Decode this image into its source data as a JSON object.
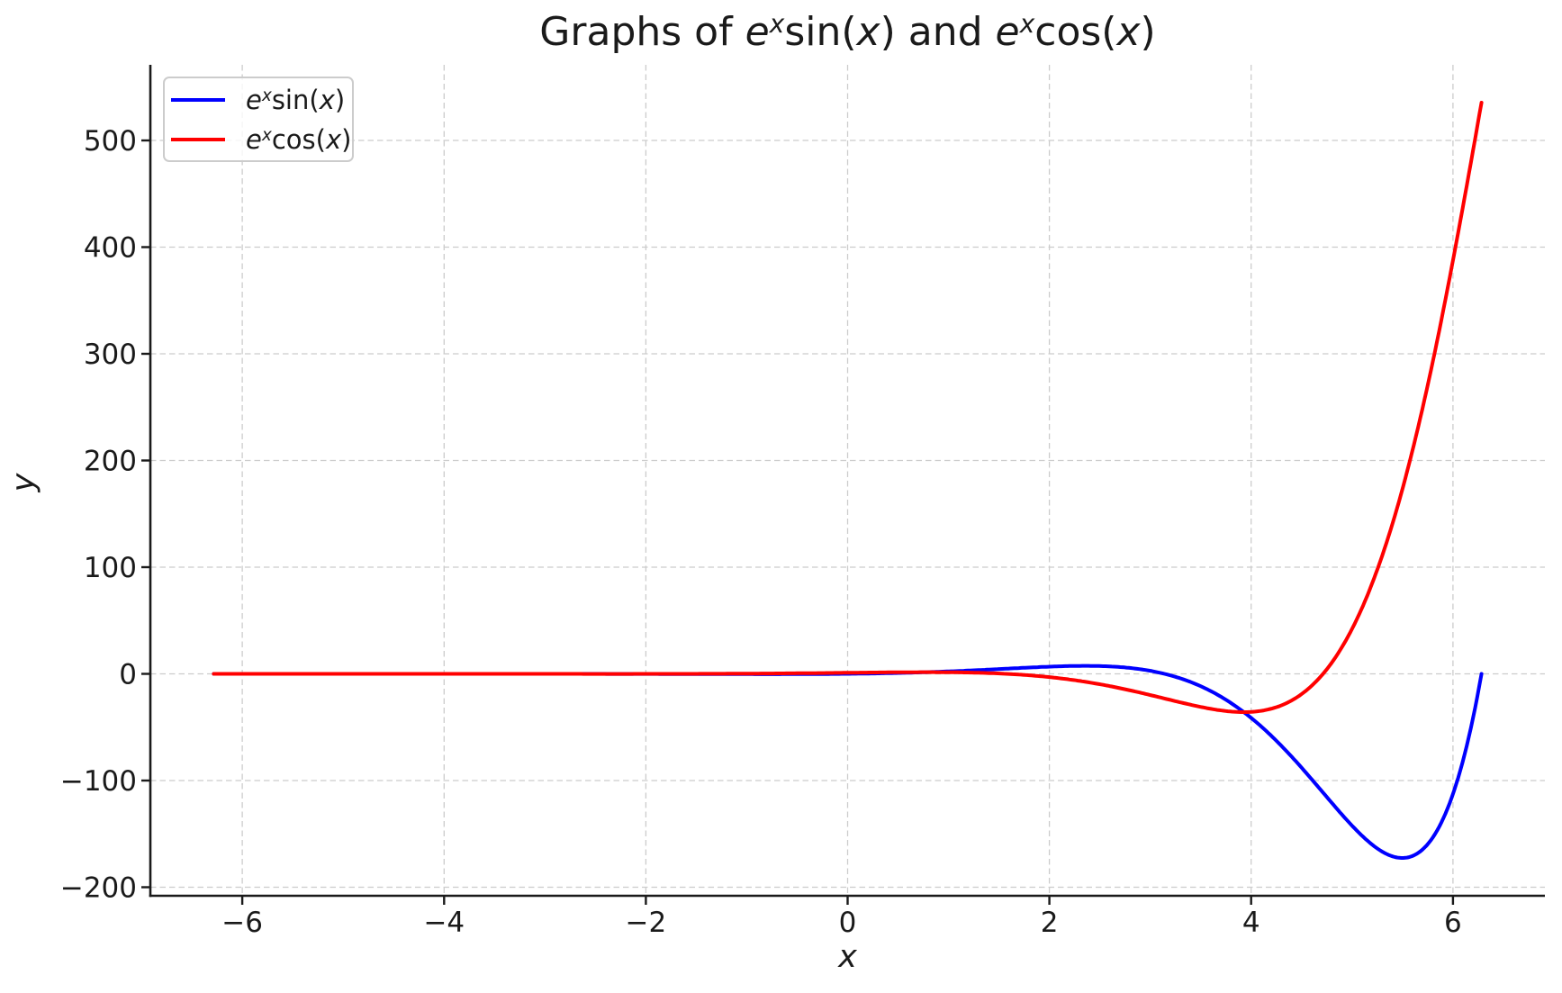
{
  "figure": {
    "background": "#ffffff",
    "text_color": "#1a1a1a",
    "grid_color": "#cccccc",
    "legend_border_color": "#cccccc"
  },
  "chart_data": {
    "type": "line",
    "title": "Graphs of e^x sin(x) and e^x cos(x)",
    "title_parts": [
      {
        "t": "Graphs of ",
        "s": "r"
      },
      {
        "t": "e",
        "s": "i"
      },
      {
        "t": "x",
        "s": "sup"
      },
      {
        "t": "sin(",
        "s": "r"
      },
      {
        "t": "x",
        "s": "i"
      },
      {
        "t": ")",
        "s": "r"
      },
      {
        "t": " and ",
        "s": "r"
      },
      {
        "t": "e",
        "s": "i"
      },
      {
        "t": "x",
        "s": "sup"
      },
      {
        "t": "cos(",
        "s": "r"
      },
      {
        "t": "x",
        "s": "i"
      },
      {
        "t": ")",
        "s": "r"
      }
    ],
    "xlabel": "x",
    "ylabel": "y",
    "xlim": [
      -6.9115,
      6.9115
    ],
    "ylim": [
      -208.05,
      570.9
    ],
    "x_domain": [
      -6.28319,
      6.28319
    ],
    "xticks": [
      -6,
      -4,
      -2,
      0,
      2,
      4,
      6
    ],
    "xtick_labels": [
      "−6",
      "−4",
      "−2",
      "0",
      "2",
      "4",
      "6"
    ],
    "yticks": [
      -200,
      -100,
      0,
      100,
      200,
      300,
      400,
      500
    ],
    "ytick_labels": [
      "−200",
      "−100",
      "0",
      "100",
      "200",
      "300",
      "400",
      "500"
    ],
    "grid": {
      "visible": true,
      "style": "dashed",
      "color": "#cccccc"
    },
    "legend": {
      "position": "upper left",
      "frame_alpha": 0.8
    },
    "series": [
      {
        "id": "exsinx",
        "name": "e^x sin(x)",
        "label_parts": [
          {
            "t": "e",
            "s": "i"
          },
          {
            "t": "x",
            "s": "sup"
          },
          {
            "t": "sin(",
            "s": "r"
          },
          {
            "t": "x",
            "s": "i"
          },
          {
            "t": ")",
            "s": "r"
          }
        ],
        "color": "#0000ff",
        "expr": "Math.exp(x)*Math.sin(x)",
        "line_width": 4,
        "key_points": [
          [
            -6.28319,
            0.0
          ],
          [
            0.0,
            0.0
          ],
          [
            2.35619,
            7.46
          ],
          [
            3.14159,
            0.0
          ],
          [
            5.49779,
            -172.64
          ],
          [
            6.28319,
            0.0
          ]
        ]
      },
      {
        "id": "excosx",
        "name": "e^x cos(x)",
        "label_parts": [
          {
            "t": "e",
            "s": "i"
          },
          {
            "t": "x",
            "s": "sup"
          },
          {
            "t": "cos(",
            "s": "r"
          },
          {
            "t": "x",
            "s": "i"
          },
          {
            "t": ")",
            "s": "r"
          }
        ],
        "color": "#ff0000",
        "expr": "Math.exp(x)*Math.cos(x)",
        "line_width": 4,
        "key_points": [
          [
            -6.28319,
            0.0019
          ],
          [
            0.0,
            1.0
          ],
          [
            1.5708,
            0.0
          ],
          [
            3.92699,
            -35.89
          ],
          [
            4.71239,
            0.0
          ],
          [
            6.28319,
            535.49
          ]
        ]
      }
    ]
  }
}
